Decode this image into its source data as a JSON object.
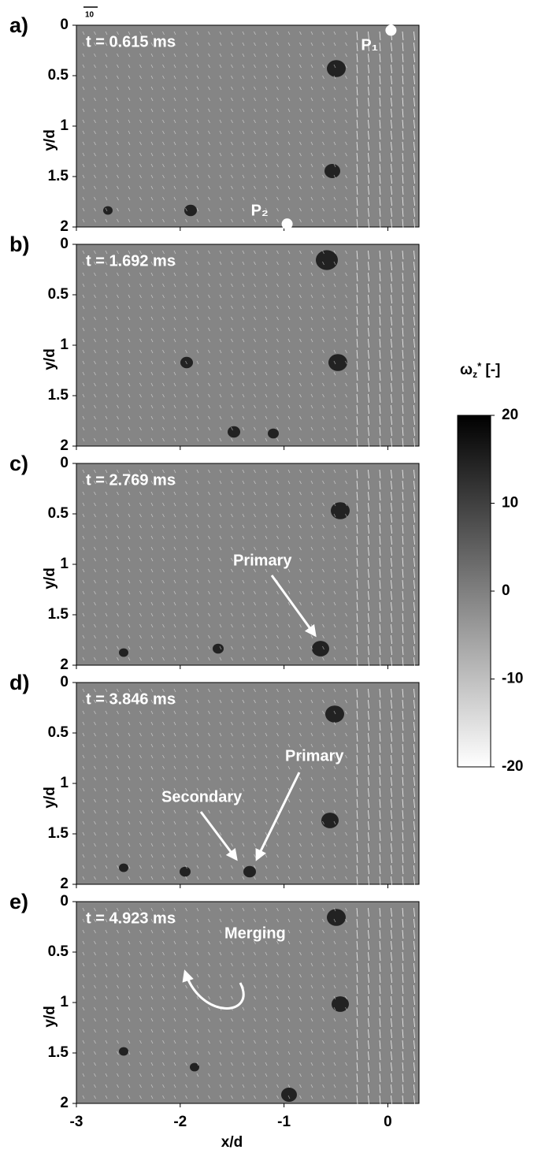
{
  "chart_data": [
    {
      "type": "vector_field",
      "panel_label": "a)",
      "time_label": "t = 0.615 ms",
      "reference_vector_label": "10",
      "xlim": [
        -3,
        0.3
      ],
      "xticks": [
        -3,
        -2,
        -1,
        0
      ],
      "show_xtick_labels": false,
      "ylim": [
        0,
        2
      ],
      "yticks": [
        0,
        0.5,
        1,
        1.5,
        2
      ],
      "y_inverted": true,
      "ylabel": "y/d",
      "points": [
        {
          "label": "P₁",
          "x": 0.03,
          "y": 0.05
        },
        {
          "label": "P₂",
          "x": -0.97,
          "y": 1.97
        }
      ],
      "annotations": []
    },
    {
      "type": "vector_field",
      "panel_label": "b)",
      "time_label": "t = 1.692 ms",
      "xlim": [
        -3,
        0.3
      ],
      "xticks": [
        -3,
        -2,
        -1,
        0
      ],
      "show_xtick_labels": false,
      "ylim": [
        0,
        2
      ],
      "yticks": [
        0,
        0.5,
        1,
        1.5,
        2
      ],
      "y_inverted": true,
      "ylabel": "y/d",
      "points": [],
      "annotations": []
    },
    {
      "type": "vector_field",
      "panel_label": "c)",
      "time_label": "t = 2.769 ms",
      "xlim": [
        -3,
        0.3
      ],
      "xticks": [
        -3,
        -2,
        -1,
        0
      ],
      "show_xtick_labels": false,
      "ylim": [
        0,
        2
      ],
      "yticks": [
        0,
        0.5,
        1,
        1.5,
        2
      ],
      "y_inverted": true,
      "ylabel": "y/d",
      "points": [],
      "annotations": [
        {
          "text": "Primary"
        }
      ]
    },
    {
      "type": "vector_field",
      "panel_label": "d)",
      "time_label": "t = 3.846 ms",
      "xlim": [
        -3,
        0.3
      ],
      "xticks": [
        -3,
        -2,
        -1,
        0
      ],
      "show_xtick_labels": false,
      "ylim": [
        0,
        2
      ],
      "yticks": [
        0,
        0.5,
        1,
        1.5,
        2
      ],
      "y_inverted": true,
      "ylabel": "y/d",
      "points": [],
      "annotations": [
        {
          "text": "Primary"
        },
        {
          "text": "Secondary"
        }
      ]
    },
    {
      "type": "vector_field",
      "panel_label": "e)",
      "time_label": "t = 4.923 ms",
      "xlim": [
        -3,
        0.3
      ],
      "xticks": [
        -3,
        -2,
        -1,
        0
      ],
      "show_xtick_labels": true,
      "xlabel": "x/d",
      "ylim": [
        0,
        2
      ],
      "yticks": [
        0,
        0.5,
        1,
        1.5,
        2
      ],
      "y_inverted": true,
      "ylabel": "y/d",
      "points": [],
      "annotations": [
        {
          "text": "Merging"
        }
      ]
    }
  ],
  "colorbar": {
    "label": [
      "ω",
      "z",
      "*",
      " [-]"
    ],
    "lim": [
      -20,
      20
    ],
    "ticks": [
      20,
      10,
      0,
      -10,
      -20
    ],
    "colors": [
      "#ffffff",
      "#000000"
    ]
  }
}
